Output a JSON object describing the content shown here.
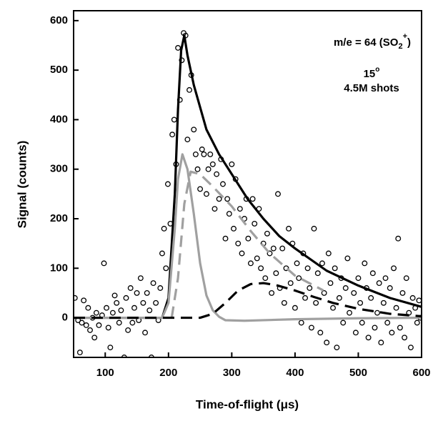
{
  "chart_data": {
    "type": "scatter",
    "xlabel": "Time-of-flight (μs)",
    "ylabel": "Signal (counts)",
    "annotations": {
      "species": [
        "m/e = 64 (SO",
        "2",
        "+",
        ")"
      ],
      "angle": [
        "15",
        "o"
      ],
      "shots": "4.5M shots"
    },
    "xlim": [
      50,
      600
    ],
    "ylim": [
      -80,
      620
    ],
    "xticks": [
      100,
      200,
      300,
      400,
      500,
      600
    ],
    "yticks": [
      0,
      100,
      200,
      300,
      400,
      500,
      600
    ],
    "series": [
      {
        "mode": "markers",
        "color": "#000000",
        "dash": false,
        "x": [
          52,
          57,
          60,
          63,
          66,
          70,
          73,
          76,
          80,
          83,
          86,
          90,
          95,
          98,
          102,
          105,
          108,
          112,
          115,
          118,
          122,
          125,
          130,
          133,
          136,
          140,
          143,
          146,
          150,
          153,
          156,
          160,
          163,
          166,
          170,
          173,
          176,
          180,
          184,
          187,
          190,
          193,
          196,
          199,
          203,
          206,
          209,
          212,
          215,
          218,
          221,
          224,
          227,
          230,
          233,
          236,
          240,
          243,
          246,
          250,
          253,
          256,
          260,
          263,
          266,
          270,
          273,
          276,
          280,
          283,
          286,
          290,
          293,
          296,
          300,
          303,
          306,
          310,
          313,
          316,
          320,
          323,
          326,
          330,
          333,
          336,
          340,
          343,
          346,
          350,
          353,
          356,
          360,
          363,
          366,
          370,
          373,
          376,
          380,
          383,
          386,
          390,
          393,
          396,
          400,
          403,
          406,
          410,
          413,
          416,
          420,
          423,
          426,
          430,
          433,
          436,
          440,
          443,
          446,
          450,
          453,
          456,
          460,
          463,
          466,
          470,
          473,
          476,
          480,
          483,
          486,
          490,
          493,
          496,
          500,
          503,
          506,
          510,
          513,
          516,
          520,
          523,
          526,
          530,
          533,
          536,
          540,
          543,
          546,
          550,
          553,
          556,
          560,
          563,
          566,
          570,
          573,
          576,
          580,
          583,
          586,
          590,
          593,
          596,
          598
        ],
        "values": [
          40,
          -5,
          -70,
          -10,
          35,
          -15,
          20,
          -25,
          0,
          -40,
          10,
          -15,
          5,
          110,
          20,
          -20,
          -60,
          10,
          45,
          30,
          -10,
          15,
          -80,
          40,
          -25,
          60,
          -10,
          20,
          50,
          -5,
          80,
          30,
          -30,
          50,
          15,
          -80,
          70,
          30,
          -5,
          60,
          130,
          180,
          100,
          270,
          190,
          370,
          400,
          310,
          545,
          440,
          520,
          575,
          570,
          360,
          460,
          490,
          380,
          330,
          300,
          260,
          340,
          330,
          250,
          300,
          330,
          310,
          220,
          290,
          240,
          320,
          270,
          160,
          240,
          210,
          310,
          180,
          280,
          150,
          220,
          130,
          200,
          240,
          160,
          110,
          240,
          190,
          120,
          220,
          100,
          150,
          80,
          170,
          130,
          50,
          140,
          90,
          250,
          60,
          140,
          30,
          100,
          180,
          70,
          150,
          20,
          110,
          80,
          -10,
          130,
          40,
          100,
          60,
          -20,
          180,
          30,
          90,
          -30,
          110,
          50,
          -50,
          130,
          70,
          20,
          100,
          -60,
          40,
          80,
          -10,
          60,
          120,
          10,
          -85,
          50,
          -30,
          80,
          30,
          -10,
          110,
          60,
          -40,
          40,
          90,
          -20,
          10,
          70,
          -50,
          30,
          80,
          -10,
          60,
          -30,
          100,
          20,
          160,
          -20,
          50,
          -40,
          80,
          10,
          -60,
          40,
          20,
          -10,
          35,
          0
        ]
      },
      {
        "mode": "line",
        "color": "#000000",
        "dash": false,
        "x": [
          50,
          100,
          150,
          190,
          200,
          210,
          215,
          220,
          225,
          230,
          240,
          260,
          280,
          300,
          325,
          350,
          375,
          400,
          450,
          500,
          550,
          600
        ],
        "values": [
          0,
          0,
          0,
          0,
          40,
          250,
          420,
          540,
          570,
          530,
          470,
          380,
          330,
          290,
          240,
          200,
          165,
          140,
          95,
          65,
          40,
          22
        ]
      },
      {
        "mode": "line",
        "color": "#a0a0a0",
        "dash": false,
        "x": [
          50,
          190,
          200,
          210,
          215,
          222,
          230,
          240,
          250,
          260,
          270,
          280,
          290,
          320,
          400,
          500,
          600
        ],
        "values": [
          0,
          0,
          30,
          180,
          280,
          330,
          300,
          210,
          110,
          45,
          15,
          2,
          -5,
          -6,
          -3,
          -1,
          0
        ]
      },
      {
        "mode": "line",
        "color": "#a0a0a0",
        "dash": true,
        "x": [
          205,
          215,
          225,
          235,
          250,
          270,
          300,
          330,
          360,
          400,
          445
        ],
        "values": [
          0,
          80,
          230,
          295,
          290,
          265,
          225,
          175,
          130,
          85,
          55
        ]
      },
      {
        "mode": "line",
        "color": "#000000",
        "dash": true,
        "x": [
          50,
          250,
          270,
          290,
          310,
          330,
          350,
          370,
          400,
          430,
          460,
          500,
          550,
          600
        ],
        "values": [
          0,
          0,
          8,
          30,
          55,
          68,
          70,
          66,
          55,
          42,
          30,
          18,
          8,
          3
        ]
      }
    ]
  }
}
